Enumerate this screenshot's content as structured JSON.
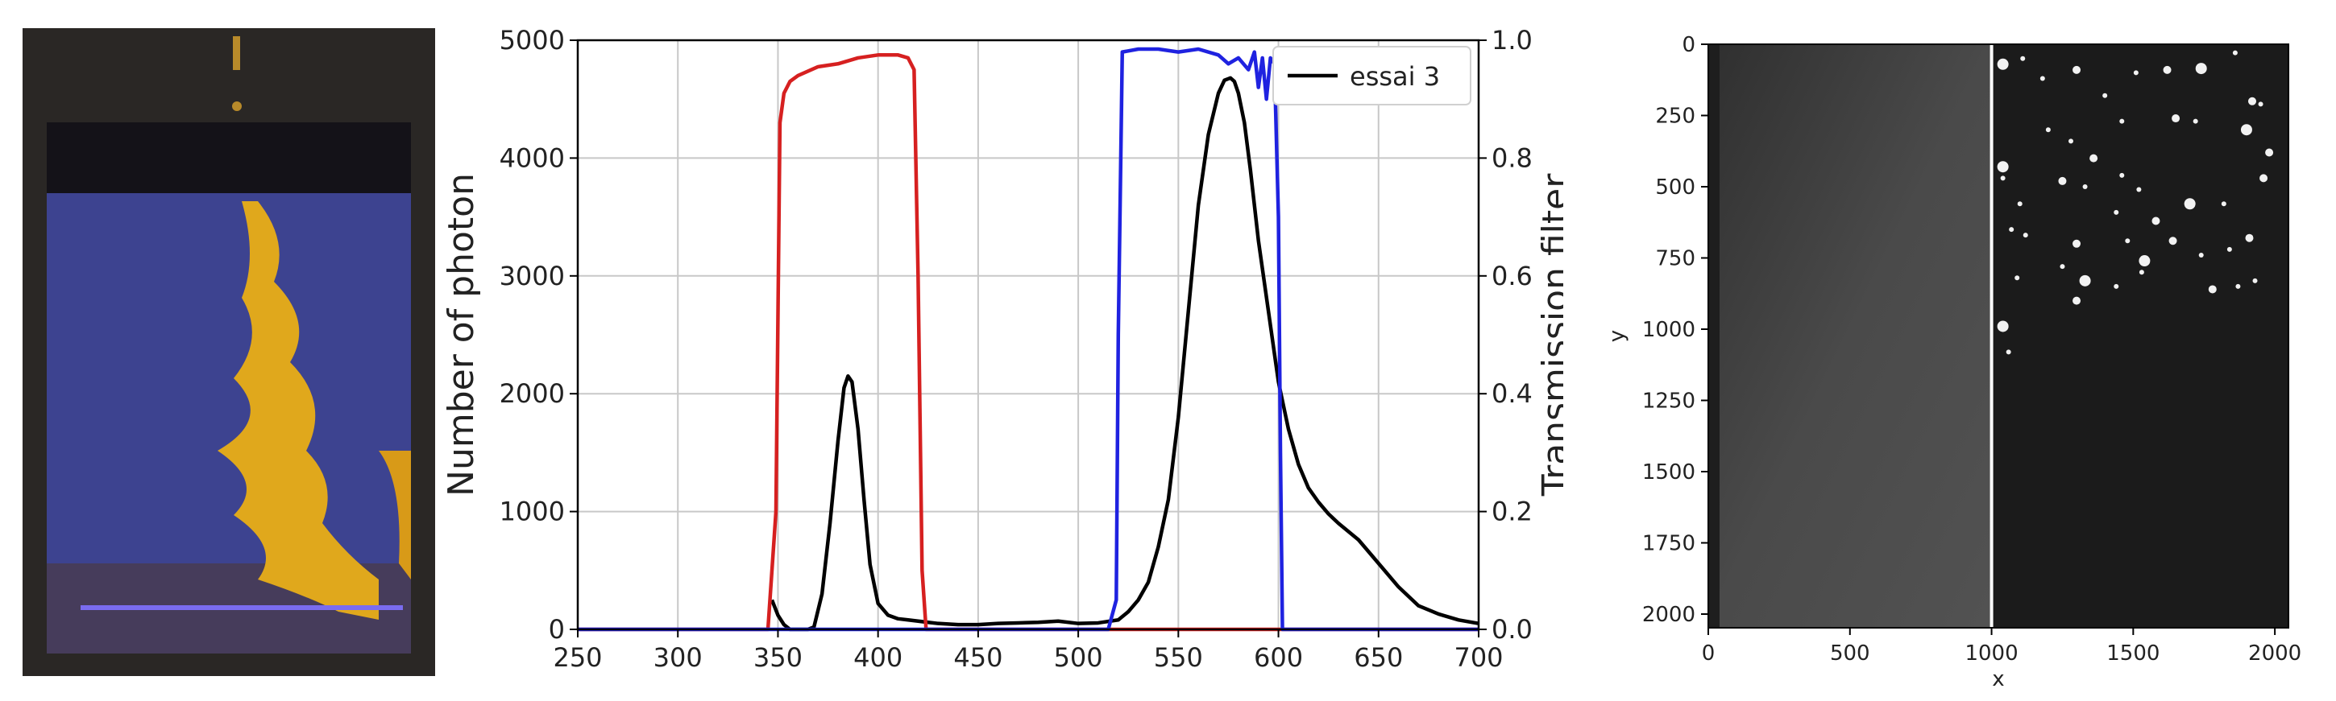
{
  "photo": {
    "description_colors": {
      "background": "#2a2725",
      "tank": "#3c4287",
      "dye": "#e0a81c",
      "band": "#7a6cf0"
    }
  },
  "chart_data": [
    {
      "type": "line",
      "title": "",
      "xlabel": "",
      "ylabel": "Number of photon",
      "ylabel_right": "Transmission filter",
      "xlim": [
        250,
        700
      ],
      "ylim": [
        0,
        5000
      ],
      "ylim_right": [
        0,
        1.0
      ],
      "x_ticks": [
        "250",
        "300",
        "350",
        "400",
        "450",
        "500",
        "550",
        "600",
        "650",
        "700"
      ],
      "y_ticks": [
        "0",
        "1000",
        "2000",
        "3000",
        "4000",
        "5000"
      ],
      "y_right_ticks": [
        "0.0",
        "0.2",
        "0.4",
        "0.6",
        "0.8",
        "1.0"
      ],
      "grid": true,
      "legend": {
        "position": "top-right",
        "entries": [
          "essai 3"
        ]
      },
      "series": [
        {
          "name": "essai 3",
          "axis": "left",
          "color": "#000000",
          "x": [
            347,
            350,
            353,
            356,
            360,
            365,
            368,
            372,
            376,
            380,
            383,
            385,
            387,
            390,
            393,
            396,
            400,
            405,
            410,
            415,
            420,
            425,
            430,
            440,
            450,
            460,
            470,
            480,
            490,
            500,
            510,
            520,
            525,
            530,
            535,
            540,
            545,
            550,
            555,
            560,
            565,
            570,
            573,
            576,
            578,
            580,
            583,
            586,
            590,
            595,
            600,
            605,
            610,
            615,
            620,
            625,
            630,
            640,
            650,
            660,
            670,
            680,
            690,
            700
          ],
          "y": [
            250,
            120,
            40,
            0,
            0,
            0,
            20,
            300,
            900,
            1600,
            2050,
            2150,
            2100,
            1700,
            1100,
            550,
            220,
            120,
            90,
            80,
            70,
            60,
            50,
            40,
            40,
            50,
            55,
            60,
            70,
            50,
            55,
            80,
            150,
            250,
            400,
            700,
            1100,
            1800,
            2700,
            3600,
            4200,
            4550,
            4660,
            4680,
            4650,
            4550,
            4300,
            3900,
            3300,
            2700,
            2100,
            1700,
            1400,
            1200,
            1080,
            980,
            900,
            760,
            560,
            360,
            200,
            130,
            80,
            50
          ]
        },
        {
          "name": "",
          "axis": "right",
          "color": "#d62020",
          "x": [
            250,
            345,
            349,
            351,
            353,
            356,
            360,
            370,
            380,
            390,
            400,
            405,
            410,
            415,
            418,
            420,
            422,
            424,
            430,
            700
          ],
          "y": [
            0,
            0,
            0.2,
            0.86,
            0.91,
            0.93,
            0.94,
            0.955,
            0.96,
            0.97,
            0.975,
            0.975,
            0.975,
            0.97,
            0.95,
            0.6,
            0.1,
            0.0,
            0,
            0
          ]
        },
        {
          "name": "",
          "axis": "right",
          "color": "#1f22e0",
          "x": [
            250,
            515,
            519,
            520,
            522,
            530,
            540,
            550,
            560,
            570,
            575,
            580,
            585,
            588,
            590,
            592,
            594,
            596,
            598,
            600,
            601,
            602,
            700
          ],
          "y": [
            0,
            0,
            0.05,
            0.5,
            0.98,
            0.985,
            0.985,
            0.98,
            0.985,
            0.975,
            0.96,
            0.97,
            0.95,
            0.98,
            0.92,
            0.97,
            0.9,
            0.97,
            0.96,
            0.7,
            0.3,
            0.0,
            0
          ]
        }
      ]
    },
    {
      "type": "heatmap",
      "title": "",
      "xlabel": "x",
      "ylabel": "y",
      "xlim": [
        0,
        2048
      ],
      "ylim": [
        2048,
        0
      ],
      "x_ticks": [
        "0",
        "500",
        "1000",
        "1500",
        "2000"
      ],
      "y_ticks": [
        "0",
        "250",
        "500",
        "750",
        "1000",
        "1250",
        "1500",
        "1750",
        "2000"
      ],
      "split_x": 1000,
      "left_half": {
        "tone": "uniform grey"
      },
      "right_half": {
        "tone": "dark with bright particles",
        "particles": [
          [
            1040,
            70
          ],
          [
            1110,
            50
          ],
          [
            1180,
            120
          ],
          [
            1300,
            90
          ],
          [
            1400,
            180
          ],
          [
            1510,
            100
          ],
          [
            1620,
            90
          ],
          [
            1740,
            85
          ],
          [
            1860,
            30
          ],
          [
            1920,
            200
          ],
          [
            1950,
            210
          ],
          [
            1460,
            270
          ],
          [
            1650,
            260
          ],
          [
            1720,
            270
          ],
          [
            1900,
            300
          ],
          [
            1980,
            380
          ],
          [
            1200,
            300
          ],
          [
            1280,
            340
          ],
          [
            1360,
            400
          ],
          [
            1460,
            460
          ],
          [
            1520,
            510
          ],
          [
            1040,
            430
          ],
          [
            1040,
            470
          ],
          [
            1100,
            560
          ],
          [
            1250,
            480
          ],
          [
            1330,
            500
          ],
          [
            1440,
            590
          ],
          [
            1580,
            620
          ],
          [
            1700,
            560
          ],
          [
            1820,
            560
          ],
          [
            1960,
            470
          ],
          [
            1070,
            650
          ],
          [
            1120,
            670
          ],
          [
            1300,
            700
          ],
          [
            1480,
            690
          ],
          [
            1540,
            760
          ],
          [
            1640,
            690
          ],
          [
            1740,
            740
          ],
          [
            1840,
            720
          ],
          [
            1910,
            680
          ],
          [
            1090,
            820
          ],
          [
            1250,
            780
          ],
          [
            1330,
            830
          ],
          [
            1440,
            850
          ],
          [
            1530,
            800
          ],
          [
            1780,
            860
          ],
          [
            1870,
            850
          ],
          [
            1930,
            830
          ],
          [
            1300,
            900
          ],
          [
            1040,
            990
          ],
          [
            1060,
            1080
          ]
        ]
      }
    }
  ]
}
